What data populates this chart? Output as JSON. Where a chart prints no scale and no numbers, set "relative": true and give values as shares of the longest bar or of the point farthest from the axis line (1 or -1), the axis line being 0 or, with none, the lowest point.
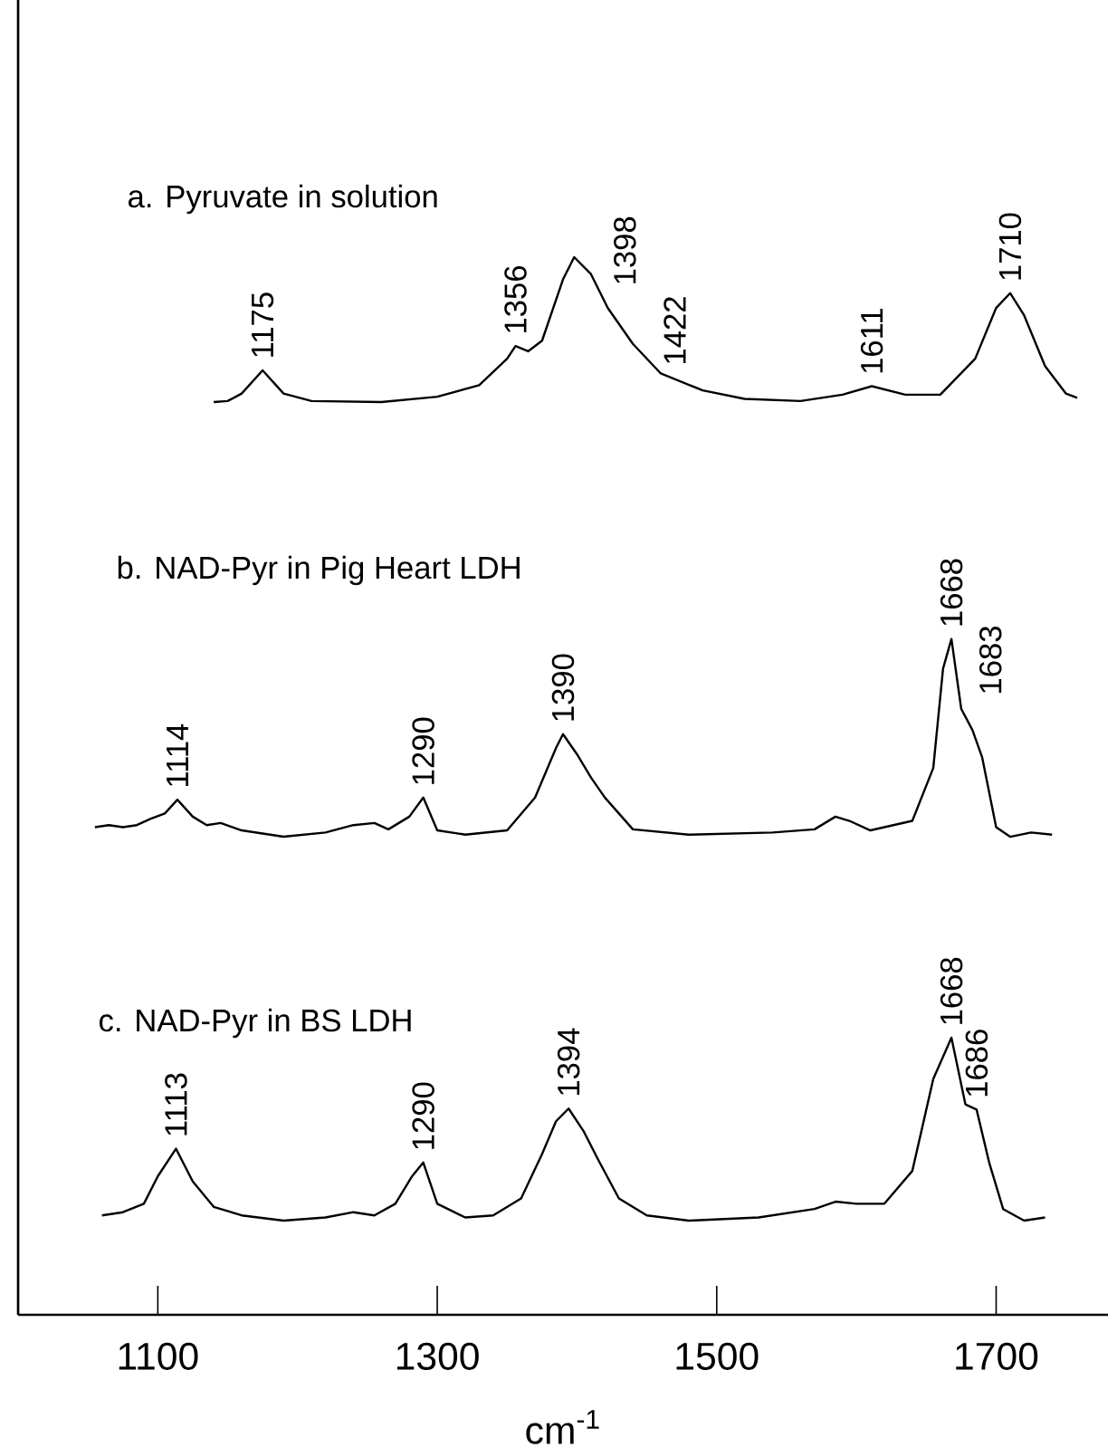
{
  "chart_data": {
    "type": "line",
    "relative": true,
    "xlabel": "cm$^{-1}$",
    "xlim": [
      1000,
      1780
    ],
    "xticks": [
      1100,
      1300,
      1500,
      1700
    ],
    "tick_labels": "x",
    "series": [
      {
        "color": "#000000",
        "x": [
          1140,
          1150,
          1160,
          1175,
          1190,
          1210,
          1260,
          1300,
          1330,
          1350,
          1356,
          1365,
          1375,
          1390,
          1398,
          1410,
          1422,
          1440,
          1460,
          1490,
          1520,
          1560,
          1590,
          1611,
          1635,
          1660,
          1685,
          1700,
          1710,
          1720,
          1735,
          1750,
          1758
        ],
        "values": [
          0.863,
          0.864,
          0.871,
          0.893,
          0.871,
          0.864,
          0.863,
          0.868,
          0.879,
          0.904,
          0.916,
          0.911,
          0.921,
          0.979,
          1,
          0.984,
          0.952,
          0.918,
          0.89,
          0.874,
          0.866,
          0.864,
          0.87,
          0.878,
          0.87,
          0.87,
          0.904,
          0.952,
          0.966,
          0.945,
          0.897,
          0.871,
          0.867
        ]
      },
      {
        "color": "#000000",
        "x": [
          1055,
          1065,
          1075,
          1085,
          1095,
          1105,
          1114,
          1125,
          1135,
          1145,
          1160,
          1190,
          1220,
          1240,
          1255,
          1265,
          1280,
          1290,
          1300,
          1320,
          1350,
          1370,
          1385,
          1390,
          1400,
          1410,
          1420,
          1440,
          1480,
          1540,
          1570,
          1585,
          1595,
          1610,
          1640,
          1655,
          1662,
          1668,
          1675,
          1683,
          1690,
          1700,
          1710,
          1725,
          1740
        ],
        "values": [
          0.461,
          0.463,
          0.461,
          0.463,
          0.469,
          0.474,
          0.487,
          0.471,
          0.463,
          0.465,
          0.458,
          0.452,
          0.456,
          0.463,
          0.465,
          0.459,
          0.471,
          0.489,
          0.458,
          0.454,
          0.458,
          0.489,
          0.536,
          0.549,
          0.53,
          0.508,
          0.489,
          0.459,
          0.454,
          0.456,
          0.459,
          0.471,
          0.467,
          0.458,
          0.467,
          0.517,
          0.611,
          0.639,
          0.573,
          0.553,
          0.527,
          0.461,
          0.452,
          0.456,
          0.454
        ]
      },
      {
        "color": "#000000",
        "x": [
          1060,
          1075,
          1090,
          1100,
          1113,
          1125,
          1140,
          1160,
          1190,
          1220,
          1240,
          1255,
          1270,
          1282,
          1290,
          1300,
          1320,
          1340,
          1360,
          1375,
          1385,
          1394,
          1405,
          1415,
          1430,
          1450,
          1480,
          1530,
          1570,
          1585,
          1600,
          1620,
          1640,
          1655,
          1668,
          1678,
          1686,
          1695,
          1705,
          1720,
          1735
        ],
        "values": [
          0.094,
          0.097,
          0.105,
          0.131,
          0.157,
          0.126,
          0.102,
          0.094,
          0.089,
          0.092,
          0.097,
          0.094,
          0.105,
          0.131,
          0.144,
          0.105,
          0.092,
          0.094,
          0.11,
          0.152,
          0.183,
          0.195,
          0.173,
          0.147,
          0.11,
          0.094,
          0.089,
          0.092,
          0.1,
          0.107,
          0.105,
          0.105,
          0.136,
          0.223,
          0.262,
          0.199,
          0.194,
          0.144,
          0.1,
          0.089,
          0.092
        ]
      }
    ],
    "annotations": [
      {
        "text": "1175",
        "x": 1175,
        "y": 0.893
      },
      {
        "text": "1356",
        "x": 1356,
        "y": 0.916
      },
      {
        "text": "1398",
        "x": 1398,
        "y": 1
      },
      {
        "text": "1422",
        "x": 1422,
        "y": 0.952
      },
      {
        "text": "1611",
        "x": 1611,
        "y": 0.878
      },
      {
        "text": "1710",
        "x": 1710,
        "y": 0.966
      },
      {
        "text": "1114",
        "x": 1114,
        "y": 0.487
      },
      {
        "text": "1290",
        "x": 1290,
        "y": 0.489
      },
      {
        "text": "1390",
        "x": 1390,
        "y": 0.549
      },
      {
        "text": "1668",
        "x": 1668,
        "y": 0.639
      },
      {
        "text": "1683",
        "x": 1683,
        "y": 0.553
      },
      {
        "text": "1113",
        "x": 1113,
        "y": 0.157
      },
      {
        "text": "1290",
        "x": 1290,
        "y": 0.144
      },
      {
        "text": "1394",
        "x": 1394,
        "y": 0.195
      },
      {
        "text": "1668",
        "x": 1668,
        "y": 0.262
      },
      {
        "text": "1686",
        "x": 1686,
        "y": 0.194
      },
      "a. Pyruvate in solution",
      "b. NAD-Pyr in Pig Heart LDH",
      "c. NAD-Pyr in BS LDH"
    ]
  }
}
